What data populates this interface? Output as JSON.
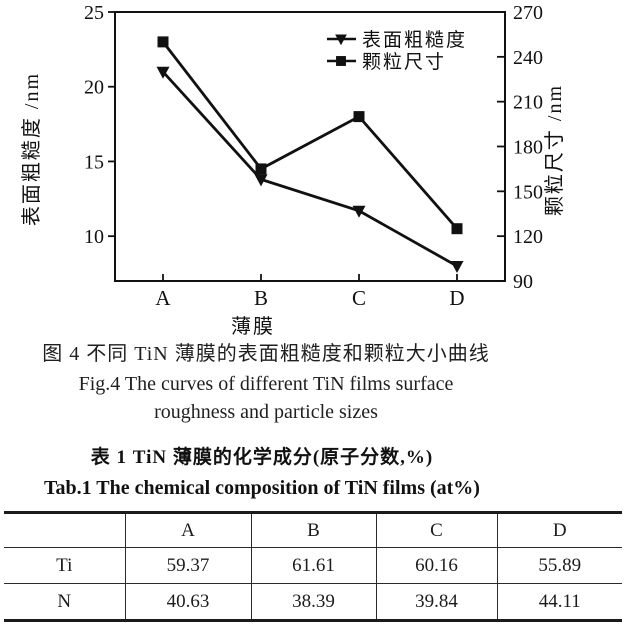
{
  "chart_data": {
    "type": "line",
    "categories": [
      "A",
      "B",
      "C",
      "D"
    ],
    "xlabel": "薄膜",
    "grid": false,
    "legend_position": "top-right-inside",
    "color": "#111111",
    "axes": {
      "left": {
        "label": "表面粗糙度 /nm",
        "lim": [
          7,
          25
        ],
        "ticks": [
          10,
          15,
          20,
          25
        ]
      },
      "right": {
        "label": "颗粒尺寸 /nm",
        "lim": [
          90,
          270
        ],
        "ticks": [
          90,
          120,
          150,
          180,
          210,
          240,
          270
        ]
      }
    },
    "series": [
      {
        "name": "表面粗糙度",
        "axis": "left",
        "marker": "triangle-down",
        "values": [
          21.0,
          13.8,
          11.7,
          8.0
        ]
      },
      {
        "name": "颗粒尺寸",
        "axis": "right",
        "marker": "square",
        "values": [
          250,
          165,
          200,
          125
        ]
      }
    ]
  },
  "figure": {
    "caption_zh": "图 4  不同 TiN 薄膜的表面粗糙度和颗粒大小曲线",
    "caption_en_line1": "Fig.4  The curves of different TiN films surface",
    "caption_en_line2": "roughness and particle sizes"
  },
  "table": {
    "title_zh": "表 1  TiN 薄膜的化学成分(原子分数,%)",
    "title_en": "Tab.1  The chemical composition of  TiN films (at%)",
    "col_headers": [
      "",
      "A",
      "B",
      "C",
      "D"
    ],
    "rows": [
      {
        "label": "Ti",
        "values": [
          "59.37",
          "61.61",
          "60.16",
          "55.89"
        ]
      },
      {
        "label": "N",
        "values": [
          "40.63",
          "38.39",
          "39.84",
          "44.11"
        ]
      }
    ]
  }
}
